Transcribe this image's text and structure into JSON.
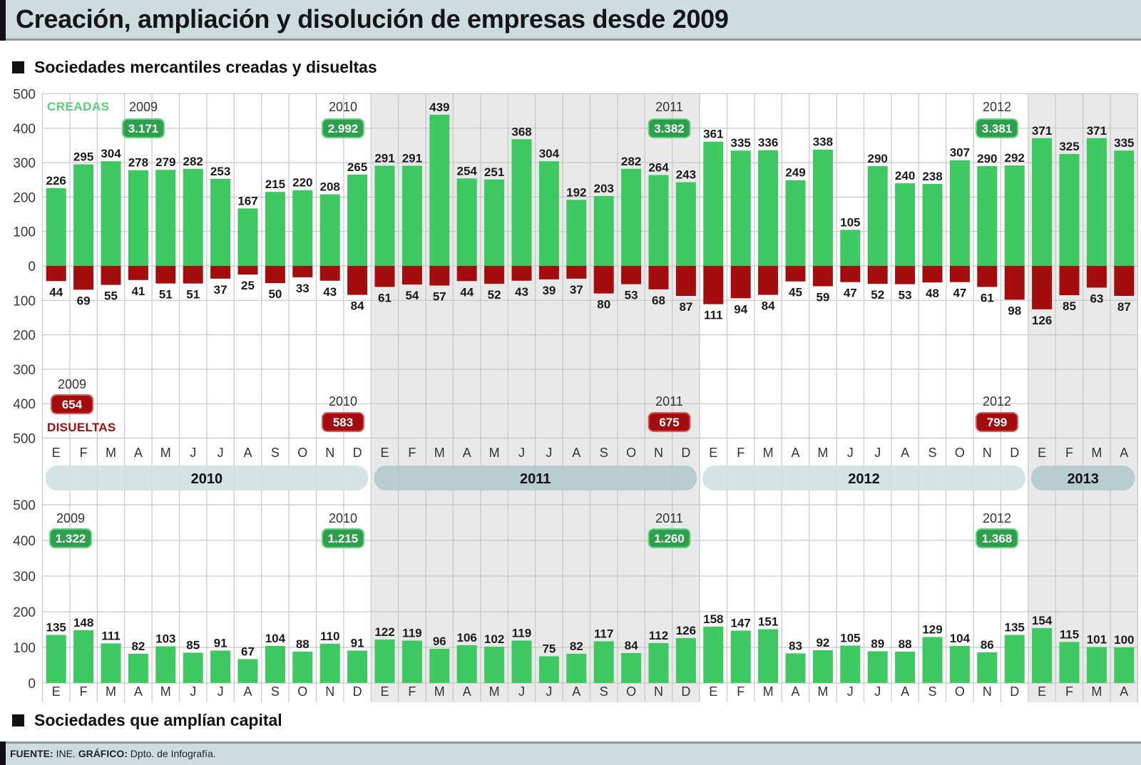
{
  "header": {
    "title": "Creación, ampliación y disolución de empresas desde 2009"
  },
  "sections": {
    "creadas_disueltas_title": "Sociedades mercantiles creadas y disueltas",
    "amplian_capital_title": "Sociedades que amplían capital"
  },
  "footer": {
    "source_label": "FUENTE:",
    "source_value": "INE.",
    "graphic_label": "GRÁFICO:",
    "graphic_value": "Dpto. de Infografía."
  },
  "colors": {
    "creadas": "#3ec862",
    "disueltas": "#a30d0d",
    "total_box_green": "#2f9e4d",
    "total_box_red": "#a30d0d",
    "legend_creadas": "#52d274",
    "shaded_year_background": "#e9e9e9",
    "year_band_light": "#cfe0e0",
    "year_band_dark": "#b2cbcb",
    "header_background": "#cddcdc"
  },
  "chart_data": [
    {
      "type": "bar",
      "title": "Sociedades mercantiles creadas y disueltas",
      "xlabel": "",
      "ylabel": "",
      "categories": [
        "E",
        "F",
        "M",
        "A",
        "M",
        "J",
        "J",
        "A",
        "S",
        "O",
        "N",
        "D",
        "E",
        "F",
        "M",
        "A",
        "M",
        "J",
        "J",
        "A",
        "S",
        "O",
        "N",
        "D",
        "E",
        "F",
        "M",
        "A",
        "M",
        "J",
        "J",
        "A",
        "S",
        "O",
        "N",
        "D",
        "E",
        "F",
        "M",
        "A"
      ],
      "year_groups": [
        {
          "label": "2010",
          "start_index": 0,
          "count": 12,
          "shaded": false
        },
        {
          "label": "2011",
          "start_index": 12,
          "count": 12,
          "shaded": true
        },
        {
          "label": "2012",
          "start_index": 24,
          "count": 12,
          "shaded": false
        },
        {
          "label": "2013",
          "start_index": 36,
          "count": 4,
          "shaded": true
        }
      ],
      "series": [
        {
          "name": "CREADAS",
          "direction": "up",
          "values": [
            226,
            295,
            304,
            278,
            279,
            282,
            253,
            167,
            215,
            220,
            208,
            265,
            291,
            291,
            439,
            254,
            251,
            368,
            304,
            192,
            203,
            282,
            264,
            243,
            361,
            335,
            336,
            249,
            338,
            105,
            290,
            240,
            238,
            307,
            290,
            292,
            371,
            325,
            371,
            335
          ]
        },
        {
          "name": "DISUELTAS",
          "direction": "down",
          "values": [
            44,
            69,
            55,
            41,
            51,
            51,
            37,
            25,
            50,
            33,
            43,
            84,
            61,
            54,
            57,
            44,
            52,
            43,
            39,
            37,
            80,
            53,
            68,
            87,
            111,
            94,
            84,
            45,
            59,
            47,
            52,
            53,
            48,
            47,
            61,
            98,
            126,
            85,
            63,
            87
          ]
        }
      ],
      "ylim": [
        -500,
        500
      ],
      "yticks": [
        500,
        400,
        300,
        200,
        100,
        0,
        -100,
        -200,
        -300,
        -400,
        -500
      ],
      "ytick_labels": [
        "500",
        "400",
        "300",
        "200",
        "100",
        "0",
        "100",
        "200",
        "300",
        "400",
        "500"
      ],
      "grid": true,
      "legend": "top-left",
      "annual_totals": {
        "creadas": [
          {
            "year": "2009",
            "value": "3.171"
          },
          {
            "year": "2010",
            "value": "2.992"
          },
          {
            "year": "2011",
            "value": "3.382"
          },
          {
            "year": "2012",
            "value": "3.381"
          }
        ],
        "disueltas": [
          {
            "year": "2009",
            "value": "654"
          },
          {
            "year": "2010",
            "value": "583"
          },
          {
            "year": "2011",
            "value": "675"
          },
          {
            "year": "2012",
            "value": "799"
          }
        ]
      }
    },
    {
      "type": "bar",
      "title": "Sociedades que amplían capital",
      "xlabel": "",
      "ylabel": "",
      "categories": [
        "E",
        "F",
        "M",
        "A",
        "M",
        "J",
        "J",
        "A",
        "S",
        "O",
        "N",
        "D",
        "E",
        "F",
        "M",
        "A",
        "M",
        "J",
        "J",
        "A",
        "S",
        "O",
        "N",
        "D",
        "E",
        "F",
        "M",
        "A",
        "M",
        "J",
        "J",
        "A",
        "S",
        "O",
        "N",
        "D",
        "E",
        "F",
        "M",
        "A"
      ],
      "series": [
        {
          "name": "",
          "values": [
            135,
            148,
            111,
            82,
            103,
            85,
            91,
            67,
            104,
            88,
            110,
            91,
            122,
            119,
            96,
            106,
            102,
            119,
            75,
            82,
            117,
            84,
            112,
            126,
            158,
            147,
            151,
            83,
            92,
            105,
            89,
            88,
            129,
            104,
            86,
            135,
            154,
            115,
            101,
            100
          ]
        }
      ],
      "ylim": [
        0,
        500
      ],
      "yticks": [
        500,
        400,
        300,
        200,
        100,
        0
      ],
      "ytick_labels": [
        "500",
        "400",
        "300",
        "200",
        "100",
        "0"
      ],
      "grid": true,
      "annual_totals": [
        {
          "year": "2009",
          "value": "1.322"
        },
        {
          "year": "2010",
          "value": "1.215"
        },
        {
          "year": "2011",
          "value": "1.260"
        },
        {
          "year": "2012",
          "value": "1.368"
        }
      ]
    }
  ]
}
